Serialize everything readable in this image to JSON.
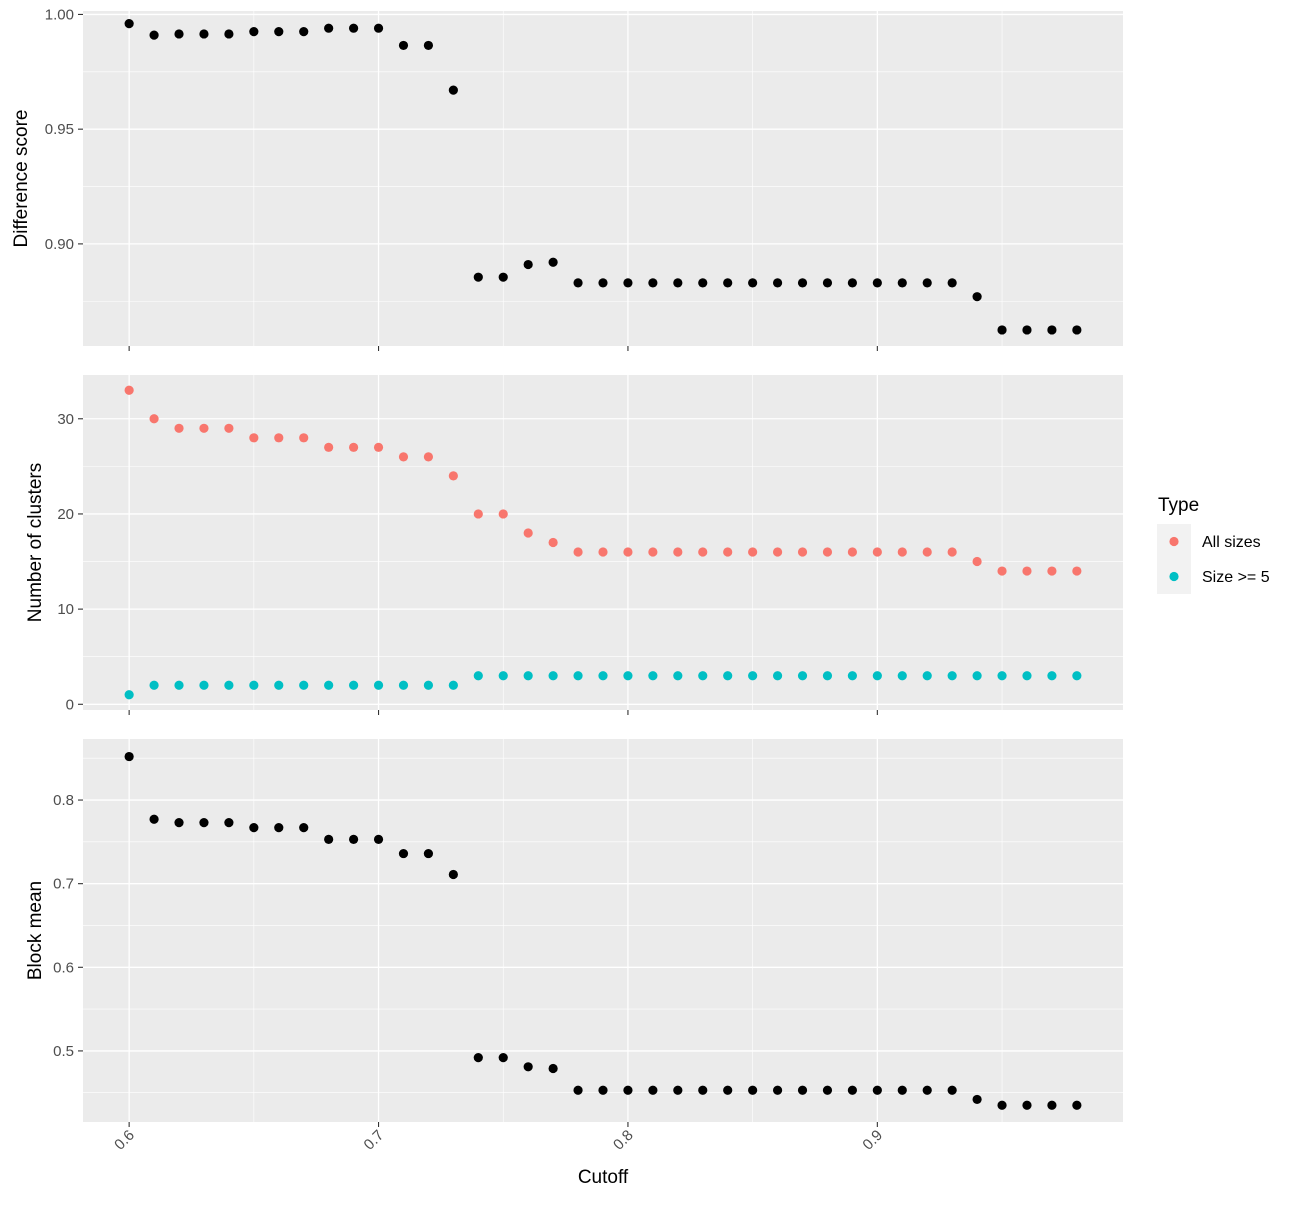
{
  "chart_data": {
    "type": "scatter",
    "x_label": "Cutoff",
    "x": [
      0.6,
      0.61,
      0.62,
      0.63,
      0.64,
      0.65,
      0.66,
      0.67,
      0.68,
      0.69,
      0.7,
      0.71,
      0.72,
      0.73,
      0.74,
      0.75,
      0.76,
      0.77,
      0.78,
      0.79,
      0.8,
      0.81,
      0.82,
      0.83,
      0.84,
      0.85,
      0.86,
      0.87,
      0.88,
      0.89,
      0.9,
      0.91,
      0.92,
      0.93,
      0.94,
      0.95,
      0.96,
      0.97,
      0.98
    ],
    "x_ticks": [
      "0.6",
      "0.7",
      "0.8",
      "0.9"
    ],
    "x_tick_values": [
      0.6,
      0.7,
      0.8,
      0.9
    ],
    "xlim": [
      0.5815,
      0.9985
    ],
    "grid": true,
    "legend": {
      "title": "Type",
      "position": "right",
      "entries": [
        {
          "label": "All sizes",
          "color": "#F8766D"
        },
        {
          "label": "Size >= 5",
          "color": "#00BFC4"
        }
      ]
    },
    "panels": [
      {
        "ylabel": "Difference score",
        "ylim": [
          0.8555,
          1.0015
        ],
        "y_ticks": [
          "0.90",
          "0.95",
          "1.00"
        ],
        "y_tick_values": [
          0.9,
          0.95,
          1.0
        ],
        "series": [
          {
            "color": "#000000",
            "values": [
              0.996,
              0.991,
              0.9915,
              0.9915,
              0.9915,
              0.9925,
              0.9925,
              0.9925,
              0.994,
              0.994,
              0.994,
              0.9865,
              0.9865,
              0.967,
              0.8855,
              0.8855,
              0.891,
              0.892,
              0.883,
              0.883,
              0.883,
              0.883,
              0.883,
              0.883,
              0.883,
              0.883,
              0.883,
              0.883,
              0.883,
              0.883,
              0.883,
              0.883,
              0.883,
              0.883,
              0.877,
              0.8625,
              0.8625,
              0.8625,
              0.8625
            ]
          }
        ]
      },
      {
        "ylabel": "Number of clusters",
        "ylim": [
          -0.6,
          34.6
        ],
        "y_ticks": [
          "0",
          "10",
          "20",
          "30"
        ],
        "y_tick_values": [
          0,
          10,
          20,
          30
        ],
        "series": [
          {
            "name": "All sizes",
            "color": "#F8766D",
            "values": [
              33,
              30,
              29,
              29,
              29,
              28,
              28,
              28,
              27,
              27,
              27,
              26,
              26,
              24,
              20,
              20,
              18,
              17,
              16,
              16,
              16,
              16,
              16,
              16,
              16,
              16,
              16,
              16,
              16,
              16,
              16,
              16,
              16,
              16,
              15,
              14,
              14,
              14,
              14
            ]
          },
          {
            "name": "Size >= 5",
            "color": "#00BFC4",
            "values": [
              1,
              2,
              2,
              2,
              2,
              2,
              2,
              2,
              2,
              2,
              2,
              2,
              2,
              2,
              3,
              3,
              3,
              3,
              3,
              3,
              3,
              3,
              3,
              3,
              3,
              3,
              3,
              3,
              3,
              3,
              3,
              3,
              3,
              3,
              3,
              3,
              3,
              3,
              3
            ]
          }
        ]
      },
      {
        "ylabel": "Block mean",
        "ylim": [
          0.415,
          0.873
        ],
        "y_ticks": [
          "0.5",
          "0.6",
          "0.7",
          "0.8"
        ],
        "y_tick_values": [
          0.5,
          0.6,
          0.7,
          0.8
        ],
        "series": [
          {
            "color": "#000000",
            "values": [
              0.852,
              0.777,
              0.773,
              0.773,
              0.773,
              0.767,
              0.767,
              0.767,
              0.753,
              0.753,
              0.753,
              0.736,
              0.736,
              0.711,
              0.492,
              0.492,
              0.481,
              0.479,
              0.453,
              0.453,
              0.453,
              0.453,
              0.453,
              0.453,
              0.453,
              0.453,
              0.453,
              0.453,
              0.453,
              0.453,
              0.453,
              0.453,
              0.453,
              0.453,
              0.442,
              0.435,
              0.435,
              0.435,
              0.435
            ]
          }
        ]
      }
    ]
  }
}
